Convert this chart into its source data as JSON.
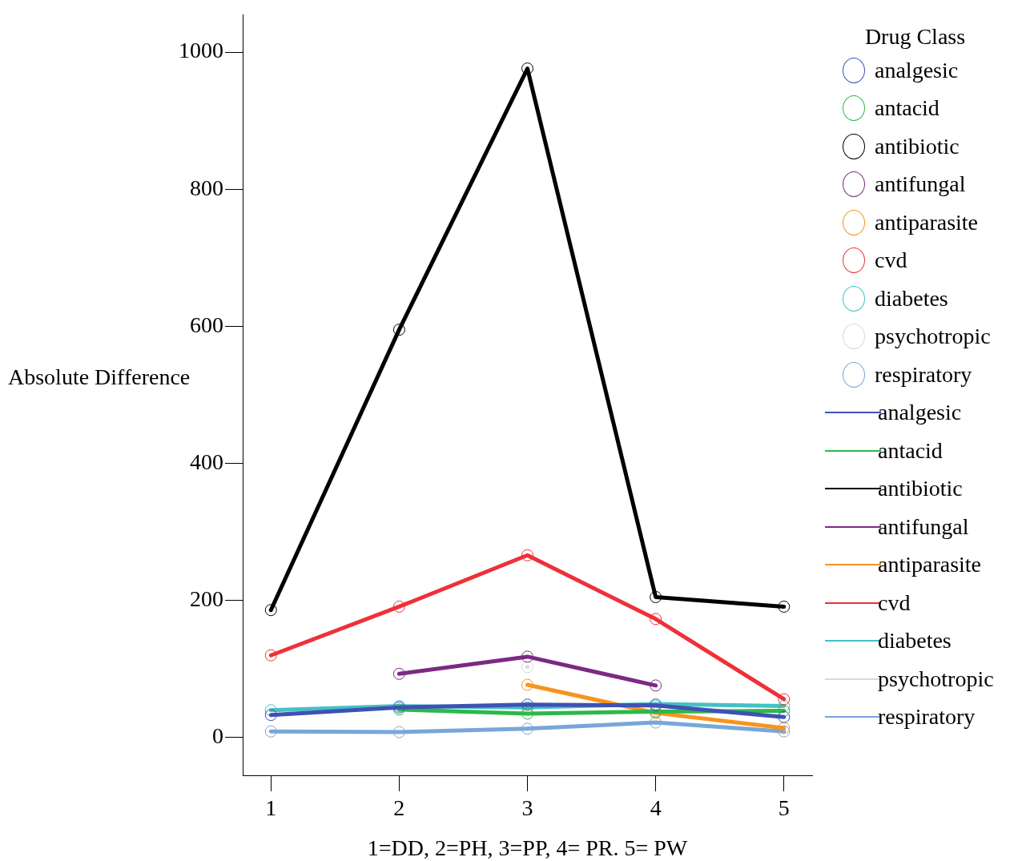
{
  "chart_data": {
    "type": "line",
    "xlabel": "1=DD, 2=PH, 3=PP, 4= PR. 5= PW",
    "ylabel": "Absolute Difference",
    "legend_title": "Drug Class",
    "legend": "right",
    "grid": false,
    "marker": "circle",
    "line_style": "solid",
    "x": [
      1,
      2,
      3,
      4,
      5
    ],
    "xlim": [
      0.78,
      5.22
    ],
    "xticks": [
      1,
      2,
      3,
      4,
      5
    ],
    "ylim": [
      -55,
      1054
    ],
    "yticks": [
      0,
      200,
      400,
      600,
      800,
      1000
    ],
    "series": [
      {
        "name": "analgesic",
        "color": "#3f51b5",
        "values": [
          33,
          44,
          48,
          47,
          30
        ]
      },
      {
        "name": "antacid",
        "color": "#2db84a",
        "values": [
          null,
          41,
          35,
          38,
          39
        ]
      },
      {
        "name": "antibiotic",
        "color": "#000000",
        "values": [
          186,
          595,
          976,
          205,
          191
        ]
      },
      {
        "name": "antifungal",
        "color": "#7b2a83",
        "values": [
          null,
          93,
          118,
          76,
          null
        ]
      },
      {
        "name": "antiparasite",
        "color": "#f7941d",
        "values": [
          null,
          null,
          77,
          36,
          14
        ]
      },
      {
        "name": "cvd",
        "color": "#ee3139",
        "values": [
          120,
          191,
          266,
          173,
          56
        ]
      },
      {
        "name": "diabetes",
        "color": "#44c1c4",
        "values": [
          40,
          46,
          44,
          49,
          46
        ]
      },
      {
        "name": "psychotropic",
        "color": "#d9d9d9",
        "values": [
          null,
          null,
          103,
          null,
          null
        ]
      },
      {
        "name": "respiratory",
        "color": "#79a6d8",
        "values": [
          9,
          8,
          13,
          22,
          9
        ]
      }
    ]
  }
}
